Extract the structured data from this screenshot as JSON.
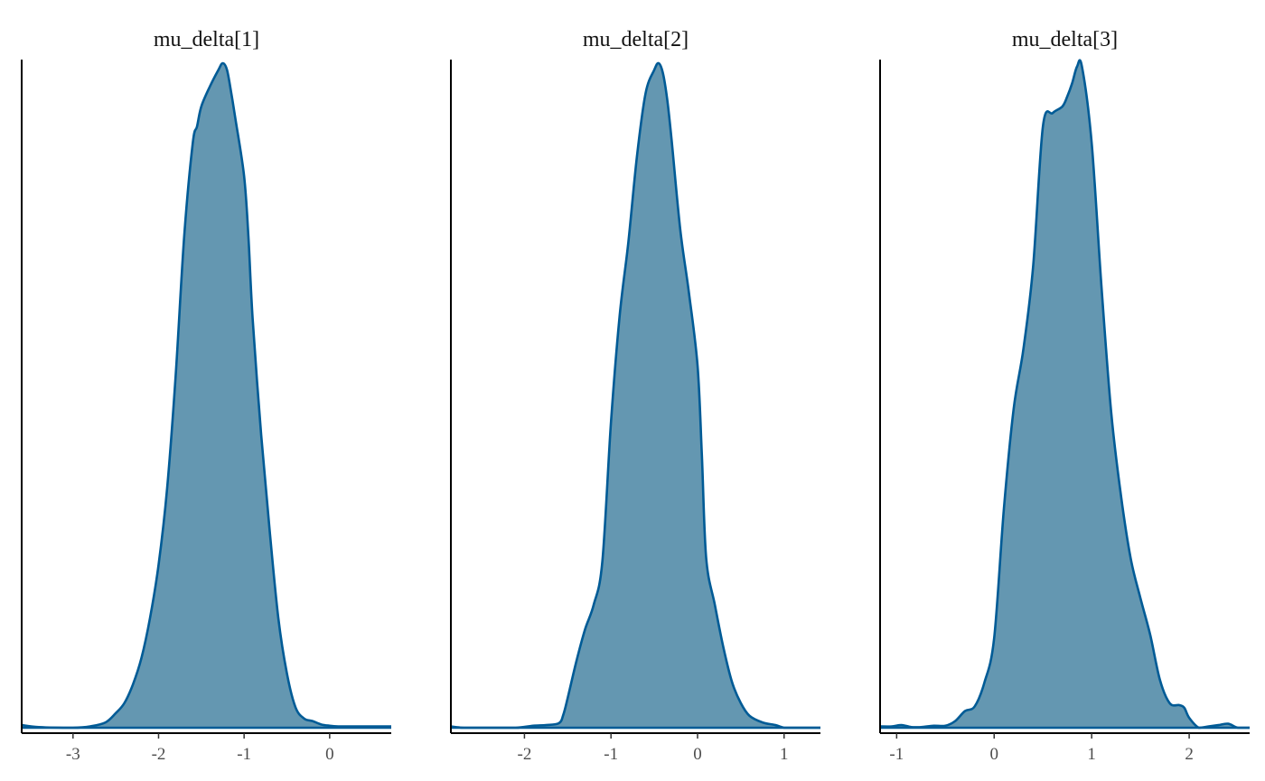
{
  "chart_data": [
    {
      "type": "area",
      "title": "mu_delta[1]",
      "xlabel": "",
      "ylabel": "",
      "xlim": [
        -3.6,
        0.72
      ],
      "ylim": [
        0,
        1.0
      ],
      "grid": false,
      "xticks": [
        -3,
        -2,
        -1,
        0
      ],
      "xtick_labels": [
        "-3",
        "-2",
        "-1",
        "0"
      ],
      "yticks": [],
      "fill_color": "#6497b1",
      "line_color": "#005b96",
      "x": [
        -3.6,
        -3.4,
        -3.0,
        -2.8,
        -2.62,
        -2.5,
        -2.4,
        -2.3,
        -2.2,
        -2.1,
        -2.0,
        -1.9,
        -1.8,
        -1.7,
        -1.6,
        -1.55,
        -1.5,
        -1.4,
        -1.3,
        -1.25,
        -1.2,
        -1.15,
        -1.1,
        -1.0,
        -0.95,
        -0.9,
        -0.8,
        -0.7,
        -0.6,
        -0.5,
        -0.4,
        -0.3,
        -0.2,
        -0.1,
        0.0,
        0.1,
        0.2,
        0.35,
        0.5,
        0.72
      ],
      "y": [
        0.004,
        0.001,
        0.0,
        0.002,
        0.008,
        0.022,
        0.037,
        0.065,
        0.105,
        0.165,
        0.245,
        0.36,
        0.53,
        0.74,
        0.88,
        0.905,
        0.935,
        0.965,
        0.99,
        1.0,
        0.99,
        0.955,
        0.915,
        0.83,
        0.74,
        0.615,
        0.44,
        0.295,
        0.165,
        0.082,
        0.031,
        0.014,
        0.01,
        0.005,
        0.003,
        0.002,
        0.002,
        0.002,
        0.002,
        0.002
      ]
    },
    {
      "type": "area",
      "title": "mu_delta[2]",
      "xlabel": "",
      "ylabel": "",
      "xlim": [
        -2.85,
        1.42
      ],
      "ylim": [
        0,
        1.0
      ],
      "grid": false,
      "xticks": [
        -2,
        -1,
        0,
        1
      ],
      "xtick_labels": [
        "-2",
        "-1",
        "0",
        "1"
      ],
      "yticks": [],
      "fill_color": "#6497b1",
      "line_color": "#005b96",
      "x": [
        -2.85,
        -2.7,
        -2.4,
        -2.1,
        -1.9,
        -1.75,
        -1.6,
        -1.55,
        -1.5,
        -1.4,
        -1.3,
        -1.2,
        -1.1,
        -1.0,
        -0.9,
        -0.8,
        -0.7,
        -0.6,
        -0.5,
        -0.45,
        -0.4,
        -0.35,
        -0.3,
        -0.2,
        -0.1,
        0.0,
        0.05,
        0.1,
        0.2,
        0.3,
        0.4,
        0.5,
        0.6,
        0.75,
        0.9,
        1.0,
        1.1,
        1.2,
        1.42
      ],
      "y": [
        0.002,
        0.0,
        0.0,
        0.0,
        0.003,
        0.004,
        0.007,
        0.02,
        0.045,
        0.1,
        0.148,
        0.185,
        0.25,
        0.46,
        0.62,
        0.73,
        0.86,
        0.955,
        0.99,
        1.0,
        0.985,
        0.945,
        0.885,
        0.75,
        0.655,
        0.545,
        0.41,
        0.255,
        0.185,
        0.12,
        0.068,
        0.037,
        0.018,
        0.008,
        0.004,
        0.0,
        0.0,
        0.0,
        0.0
      ]
    },
    {
      "type": "area",
      "title": "mu_delta[3]",
      "xlabel": "",
      "ylabel": "",
      "xlim": [
        -1.17,
        2.62
      ],
      "ylim": [
        0,
        1.0
      ],
      "grid": false,
      "xticks": [
        -1,
        0,
        1,
        2
      ],
      "xtick_labels": [
        "-1",
        "0",
        "1",
        "2"
      ],
      "yticks": [],
      "fill_color": "#6497b1",
      "line_color": "#005b96",
      "x": [
        -1.17,
        -1.05,
        -0.95,
        -0.85,
        -0.75,
        -0.62,
        -0.5,
        -0.4,
        -0.3,
        -0.2,
        -0.1,
        0.0,
        0.1,
        0.2,
        0.3,
        0.4,
        0.5,
        0.6,
        0.7,
        0.75,
        0.8,
        0.85,
        0.9,
        1.0,
        1.1,
        1.2,
        1.3,
        1.4,
        1.5,
        1.6,
        1.7,
        1.8,
        1.9,
        1.95,
        2.0,
        2.1,
        2.2,
        2.3,
        2.4,
        2.5,
        2.62
      ],
      "y": [
        0.002,
        0.002,
        0.004,
        0.001,
        0.001,
        0.003,
        0.003,
        0.01,
        0.025,
        0.032,
        0.068,
        0.135,
        0.33,
        0.48,
        0.57,
        0.695,
        0.905,
        0.925,
        0.935,
        0.95,
        0.97,
        0.995,
        0.995,
        0.88,
        0.665,
        0.475,
        0.35,
        0.255,
        0.195,
        0.14,
        0.072,
        0.037,
        0.034,
        0.03,
        0.015,
        0.0,
        0.002,
        0.004,
        0.006,
        0.0,
        0.0
      ]
    }
  ]
}
